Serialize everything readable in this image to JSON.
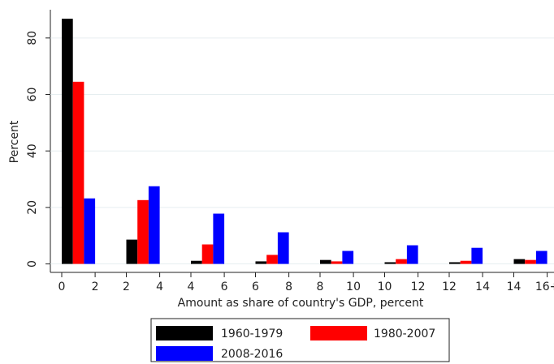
{
  "chart_data": {
    "type": "bar",
    "x_label": "Amount as share of country's GDP, percent",
    "y_label": "Percent",
    "categories": [
      null,
      null,
      null,
      null,
      null,
      null,
      null,
      null
    ],
    "group_edge_labels": [
      [
        "0",
        "2"
      ],
      [
        "2",
        "4"
      ],
      [
        "4",
        "6"
      ],
      [
        "6",
        "8"
      ],
      [
        "8",
        "10"
      ],
      [
        "10",
        "12"
      ],
      [
        "12",
        "14"
      ],
      [
        "14",
        "16+"
      ]
    ],
    "series": [
      {
        "name": "1960-1979",
        "color": "#000000",
        "values": [
          86.8,
          8.6,
          1.1,
          0.9,
          1.4,
          0.6,
          0.6,
          1.7
        ]
      },
      {
        "name": "1980-2007",
        "color": "#ff0000",
        "values": [
          64.5,
          22.6,
          6.9,
          3.2,
          0.9,
          1.7,
          1.1,
          1.4
        ]
      },
      {
        "name": "2008-2016",
        "color": "#0000ff",
        "values": [
          23.2,
          27.5,
          17.8,
          11.2,
          4.6,
          6.6,
          5.7,
          4.6
        ]
      }
    ],
    "ylim": [
      -3,
      90
    ],
    "yticks": [
      0,
      20,
      40,
      60,
      80
    ],
    "grid": true
  }
}
